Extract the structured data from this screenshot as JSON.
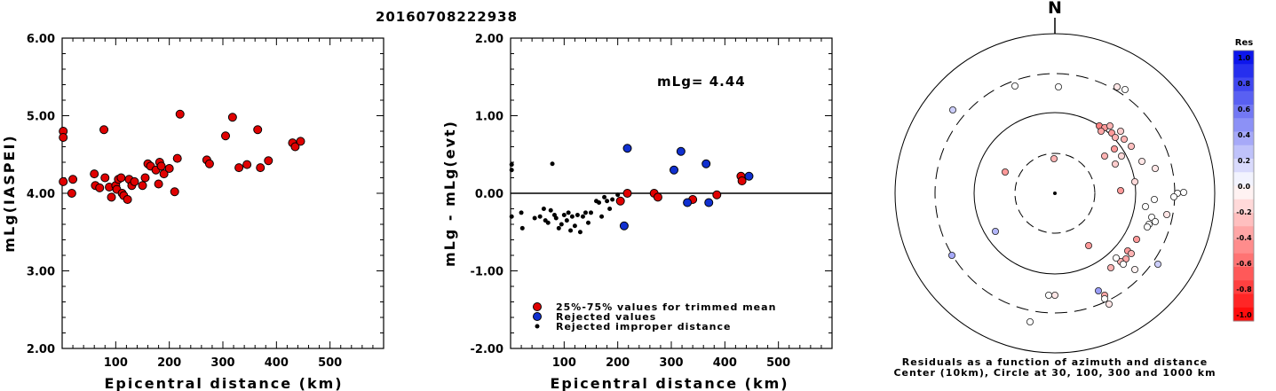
{
  "title": "20160708222938",
  "left_chart": {
    "xlabel": "Epicentral distance (km)",
    "ylabel": "mLg(IASPEI)",
    "xlim": [
      0,
      600
    ],
    "ylim": [
      2,
      6
    ],
    "xticks": [
      "100",
      "200",
      "300",
      "400",
      "500"
    ],
    "yticks": [
      "2.00",
      "3.00",
      "4.00",
      "5.00",
      "6.00"
    ]
  },
  "mid_chart": {
    "xlabel": "Epicentral distance (km)",
    "ylabel": "mLg - mLg(evt)",
    "xlim": [
      0,
      600
    ],
    "ylim": [
      -2,
      2
    ],
    "xticks": [
      "100",
      "200",
      "300",
      "400",
      "500"
    ],
    "yticks": [
      "-2.00",
      "-1.00",
      "0.00",
      "1.00",
      "2.00"
    ],
    "annotation": "mLg= 4.44",
    "legend": [
      {
        "label": "25%-75% values for trimmed mean",
        "color": "#e00000"
      },
      {
        "label": "Rejected values",
        "color": "#1030d0"
      },
      {
        "label": "Rejected improper distance",
        "color": "#000000"
      }
    ]
  },
  "polar": {
    "north_label": "N",
    "caption1": "Residuals as a function of azimuth and distance",
    "caption2": "Center (10km), Circle at 30, 100, 300 and 1000 km"
  },
  "colorbar": {
    "title": "Res",
    "labels": [
      "1.0",
      "0.8",
      "0.6",
      "0.4",
      "0.2",
      "0.0",
      "-0.2",
      "-0.4",
      "-0.6",
      "-0.8",
      "-1.0"
    ]
  },
  "chart_data": [
    {
      "type": "scatter",
      "name": "left",
      "points": [
        [
          2,
          4.8
        ],
        [
          2,
          4.72
        ],
        [
          2,
          4.15
        ],
        [
          20,
          4.18
        ],
        [
          18,
          4.0
        ],
        [
          60,
          4.25
        ],
        [
          62,
          4.1
        ],
        [
          70,
          4.07
        ],
        [
          78,
          4.82
        ],
        [
          80,
          4.2
        ],
        [
          88,
          4.08
        ],
        [
          92,
          3.95
        ],
        [
          100,
          4.1
        ],
        [
          102,
          4.05
        ],
        [
          105,
          4.18
        ],
        [
          110,
          4.2
        ],
        [
          112,
          4.0
        ],
        [
          115,
          3.97
        ],
        [
          122,
          3.92
        ],
        [
          125,
          4.18
        ],
        [
          130,
          4.1
        ],
        [
          135,
          4.15
        ],
        [
          150,
          4.1
        ],
        [
          155,
          4.2
        ],
        [
          160,
          4.38
        ],
        [
          165,
          4.35
        ],
        [
          175,
          4.3
        ],
        [
          180,
          4.12
        ],
        [
          182,
          4.4
        ],
        [
          185,
          4.35
        ],
        [
          190,
          4.25
        ],
        [
          200,
          4.32
        ],
        [
          210,
          4.02
        ],
        [
          215,
          4.45
        ],
        [
          220,
          5.02
        ],
        [
          270,
          4.43
        ],
        [
          275,
          4.38
        ],
        [
          305,
          4.74
        ],
        [
          318,
          4.98
        ],
        [
          330,
          4.33
        ],
        [
          345,
          4.37
        ],
        [
          365,
          4.82
        ],
        [
          370,
          4.33
        ],
        [
          385,
          4.42
        ],
        [
          430,
          4.65
        ],
        [
          435,
          4.6
        ],
        [
          445,
          4.67
        ]
      ]
    },
    {
      "type": "scatter",
      "name": "mid",
      "red": [
        [
          205,
          -0.1
        ],
        [
          218,
          0.0
        ],
        [
          268,
          0.0
        ],
        [
          275,
          -0.05
        ],
        [
          340,
          -0.08
        ],
        [
          385,
          -0.02
        ],
        [
          430,
          0.22
        ],
        [
          432,
          0.16
        ]
      ],
      "blue": [
        [
          212,
          -0.42
        ],
        [
          218,
          0.58
        ],
        [
          305,
          0.3
        ],
        [
          318,
          0.54
        ],
        [
          330,
          -0.12
        ],
        [
          365,
          0.38
        ],
        [
          370,
          -0.12
        ],
        [
          445,
          0.22
        ]
      ],
      "black": [
        [
          2,
          0.37
        ],
        [
          2,
          0.3
        ],
        [
          2,
          -0.3
        ],
        [
          20,
          -0.25
        ],
        [
          22,
          -0.45
        ],
        [
          45,
          -0.32
        ],
        [
          55,
          -0.3
        ],
        [
          62,
          -0.2
        ],
        [
          65,
          -0.35
        ],
        [
          70,
          -0.38
        ],
        [
          75,
          -0.22
        ],
        [
          78,
          0.38
        ],
        [
          82,
          -0.28
        ],
        [
          85,
          -0.32
        ],
        [
          90,
          -0.45
        ],
        [
          95,
          -0.4
        ],
        [
          100,
          -0.28
        ],
        [
          105,
          -0.35
        ],
        [
          108,
          -0.25
        ],
        [
          112,
          -0.48
        ],
        [
          115,
          -0.3
        ],
        [
          120,
          -0.42
        ],
        [
          125,
          -0.28
        ],
        [
          130,
          -0.5
        ],
        [
          135,
          -0.3
        ],
        [
          140,
          -0.25
        ],
        [
          145,
          -0.38
        ],
        [
          150,
          -0.25
        ],
        [
          160,
          -0.1
        ],
        [
          165,
          -0.12
        ],
        [
          170,
          -0.3
        ],
        [
          175,
          -0.05
        ],
        [
          180,
          -0.1
        ],
        [
          185,
          -0.2
        ],
        [
          190,
          -0.08
        ],
        [
          200,
          -0.02
        ]
      ]
    },
    {
      "type": "scatter",
      "name": "polar-residuals",
      "points": [
        [
          1143,
          97,
          0.0
        ],
        [
          1192,
          98,
          0.0
        ],
        [
          1258,
          98,
          -0.1
        ],
        [
          1267,
          101,
          0.0
        ],
        [
          1073,
          124,
          0.2
        ],
        [
          1238,
          142,
          -0.5
        ],
        [
          1244,
          144,
          -0.4
        ],
        [
          1250,
          142,
          -0.3
        ],
        [
          1240,
          148,
          -0.35
        ],
        [
          1252,
          150,
          -0.4
        ],
        [
          1256,
          155,
          -0.3
        ],
        [
          1262,
          148,
          -0.2
        ],
        [
          1266,
          157,
          -0.3
        ],
        [
          1274,
          165,
          -0.25
        ],
        [
          1255,
          168,
          -0.4
        ],
        [
          1244,
          176,
          -0.3
        ],
        [
          1263,
          176,
          -0.15
        ],
        [
          1256,
          185,
          -0.2
        ],
        [
          1286,
          182,
          -0.1
        ],
        [
          1301,
          190,
          -0.1
        ],
        [
          1278,
          205,
          -0.15
        ],
        [
          1262,
          215,
          -0.4
        ],
        [
          1187,
          179,
          -0.3
        ],
        [
          1132,
          194,
          -0.4
        ],
        [
          1326,
          218,
          0.0
        ],
        [
          1333,
          217,
          0.0
        ],
        [
          1322,
          222,
          0.0
        ],
        [
          1300,
          225,
          0.0
        ],
        [
          1290,
          233,
          0.0
        ],
        [
          1314,
          242,
          -0.1
        ],
        [
          1297,
          245,
          0.0
        ],
        [
          1294,
          253,
          0.0
        ],
        [
          1301,
          250,
          0.0
        ],
        [
          1292,
          256,
          0.0
        ],
        [
          1280,
          270,
          -0.4
        ],
        [
          1226,
          277,
          -0.4
        ],
        [
          1121,
          261,
          0.3
        ],
        [
          1270,
          283,
          -0.4
        ],
        [
          1274,
          286,
          -0.3
        ],
        [
          1268,
          292,
          -0.35
        ],
        [
          1262,
          295,
          -0.3
        ],
        [
          1257,
          291,
          0.0
        ],
        [
          1265,
          298,
          0.0
        ],
        [
          1251,
          302,
          -0.3
        ],
        [
          1304,
          298,
          0.2
        ],
        [
          1072,
          288,
          0.35
        ],
        [
          1278,
          304,
          -0.05
        ],
        [
          1181,
          333,
          0.0
        ],
        [
          1188,
          333,
          -0.1
        ],
        [
          1237,
          328,
          0.4
        ],
        [
          1244,
          333,
          -0.35
        ],
        [
          1244,
          337,
          0.0
        ],
        [
          1249,
          343,
          -0.1
        ],
        [
          1160,
          363,
          0.0
        ]
      ]
    }
  ]
}
